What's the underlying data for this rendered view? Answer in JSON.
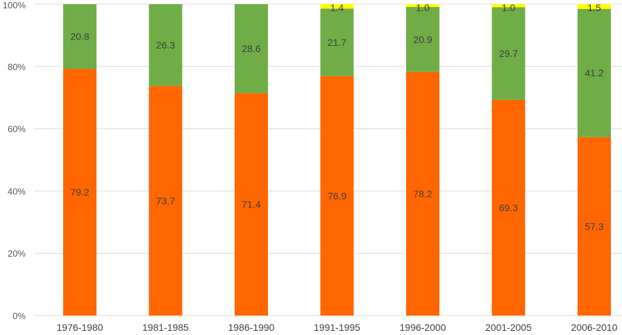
{
  "chart_data": {
    "type": "bar",
    "stacked": "percent",
    "title": "",
    "xlabel": "",
    "ylabel": "",
    "categories": [
      "1976-1980",
      "1981-1985",
      "1986-1990",
      "1991-1995",
      "1996-2000",
      "2001-2005",
      "2006-2010"
    ],
    "series": [
      {
        "color": "#ff6600",
        "values": [
          79.2,
          73.7,
          71.4,
          76.9,
          78.2,
          69.3,
          57.3
        ]
      },
      {
        "color": "#70ad47",
        "values": [
          20.8,
          26.3,
          28.6,
          21.7,
          20.9,
          29.7,
          41.2
        ]
      },
      {
        "color": "#ffff00",
        "values": [
          0,
          0,
          0,
          1.4,
          1.0,
          1.0,
          1.5
        ]
      }
    ],
    "data_labels": [
      [
        "79.2",
        "73.7",
        "71.4",
        "76.9",
        "78.2",
        "69.3",
        "57.3"
      ],
      [
        "20.8",
        "26.3",
        "28.6",
        "21.7",
        "20.9",
        "29.7",
        "41.2"
      ],
      [
        "",
        "",
        "",
        "1.4",
        "1.0",
        "1.0",
        "1.5"
      ]
    ],
    "yticks": [
      "0%",
      "20%",
      "40%",
      "60%",
      "80%",
      "100%"
    ],
    "ylim": [
      0,
      100
    ],
    "grid": true,
    "legend": "none"
  }
}
